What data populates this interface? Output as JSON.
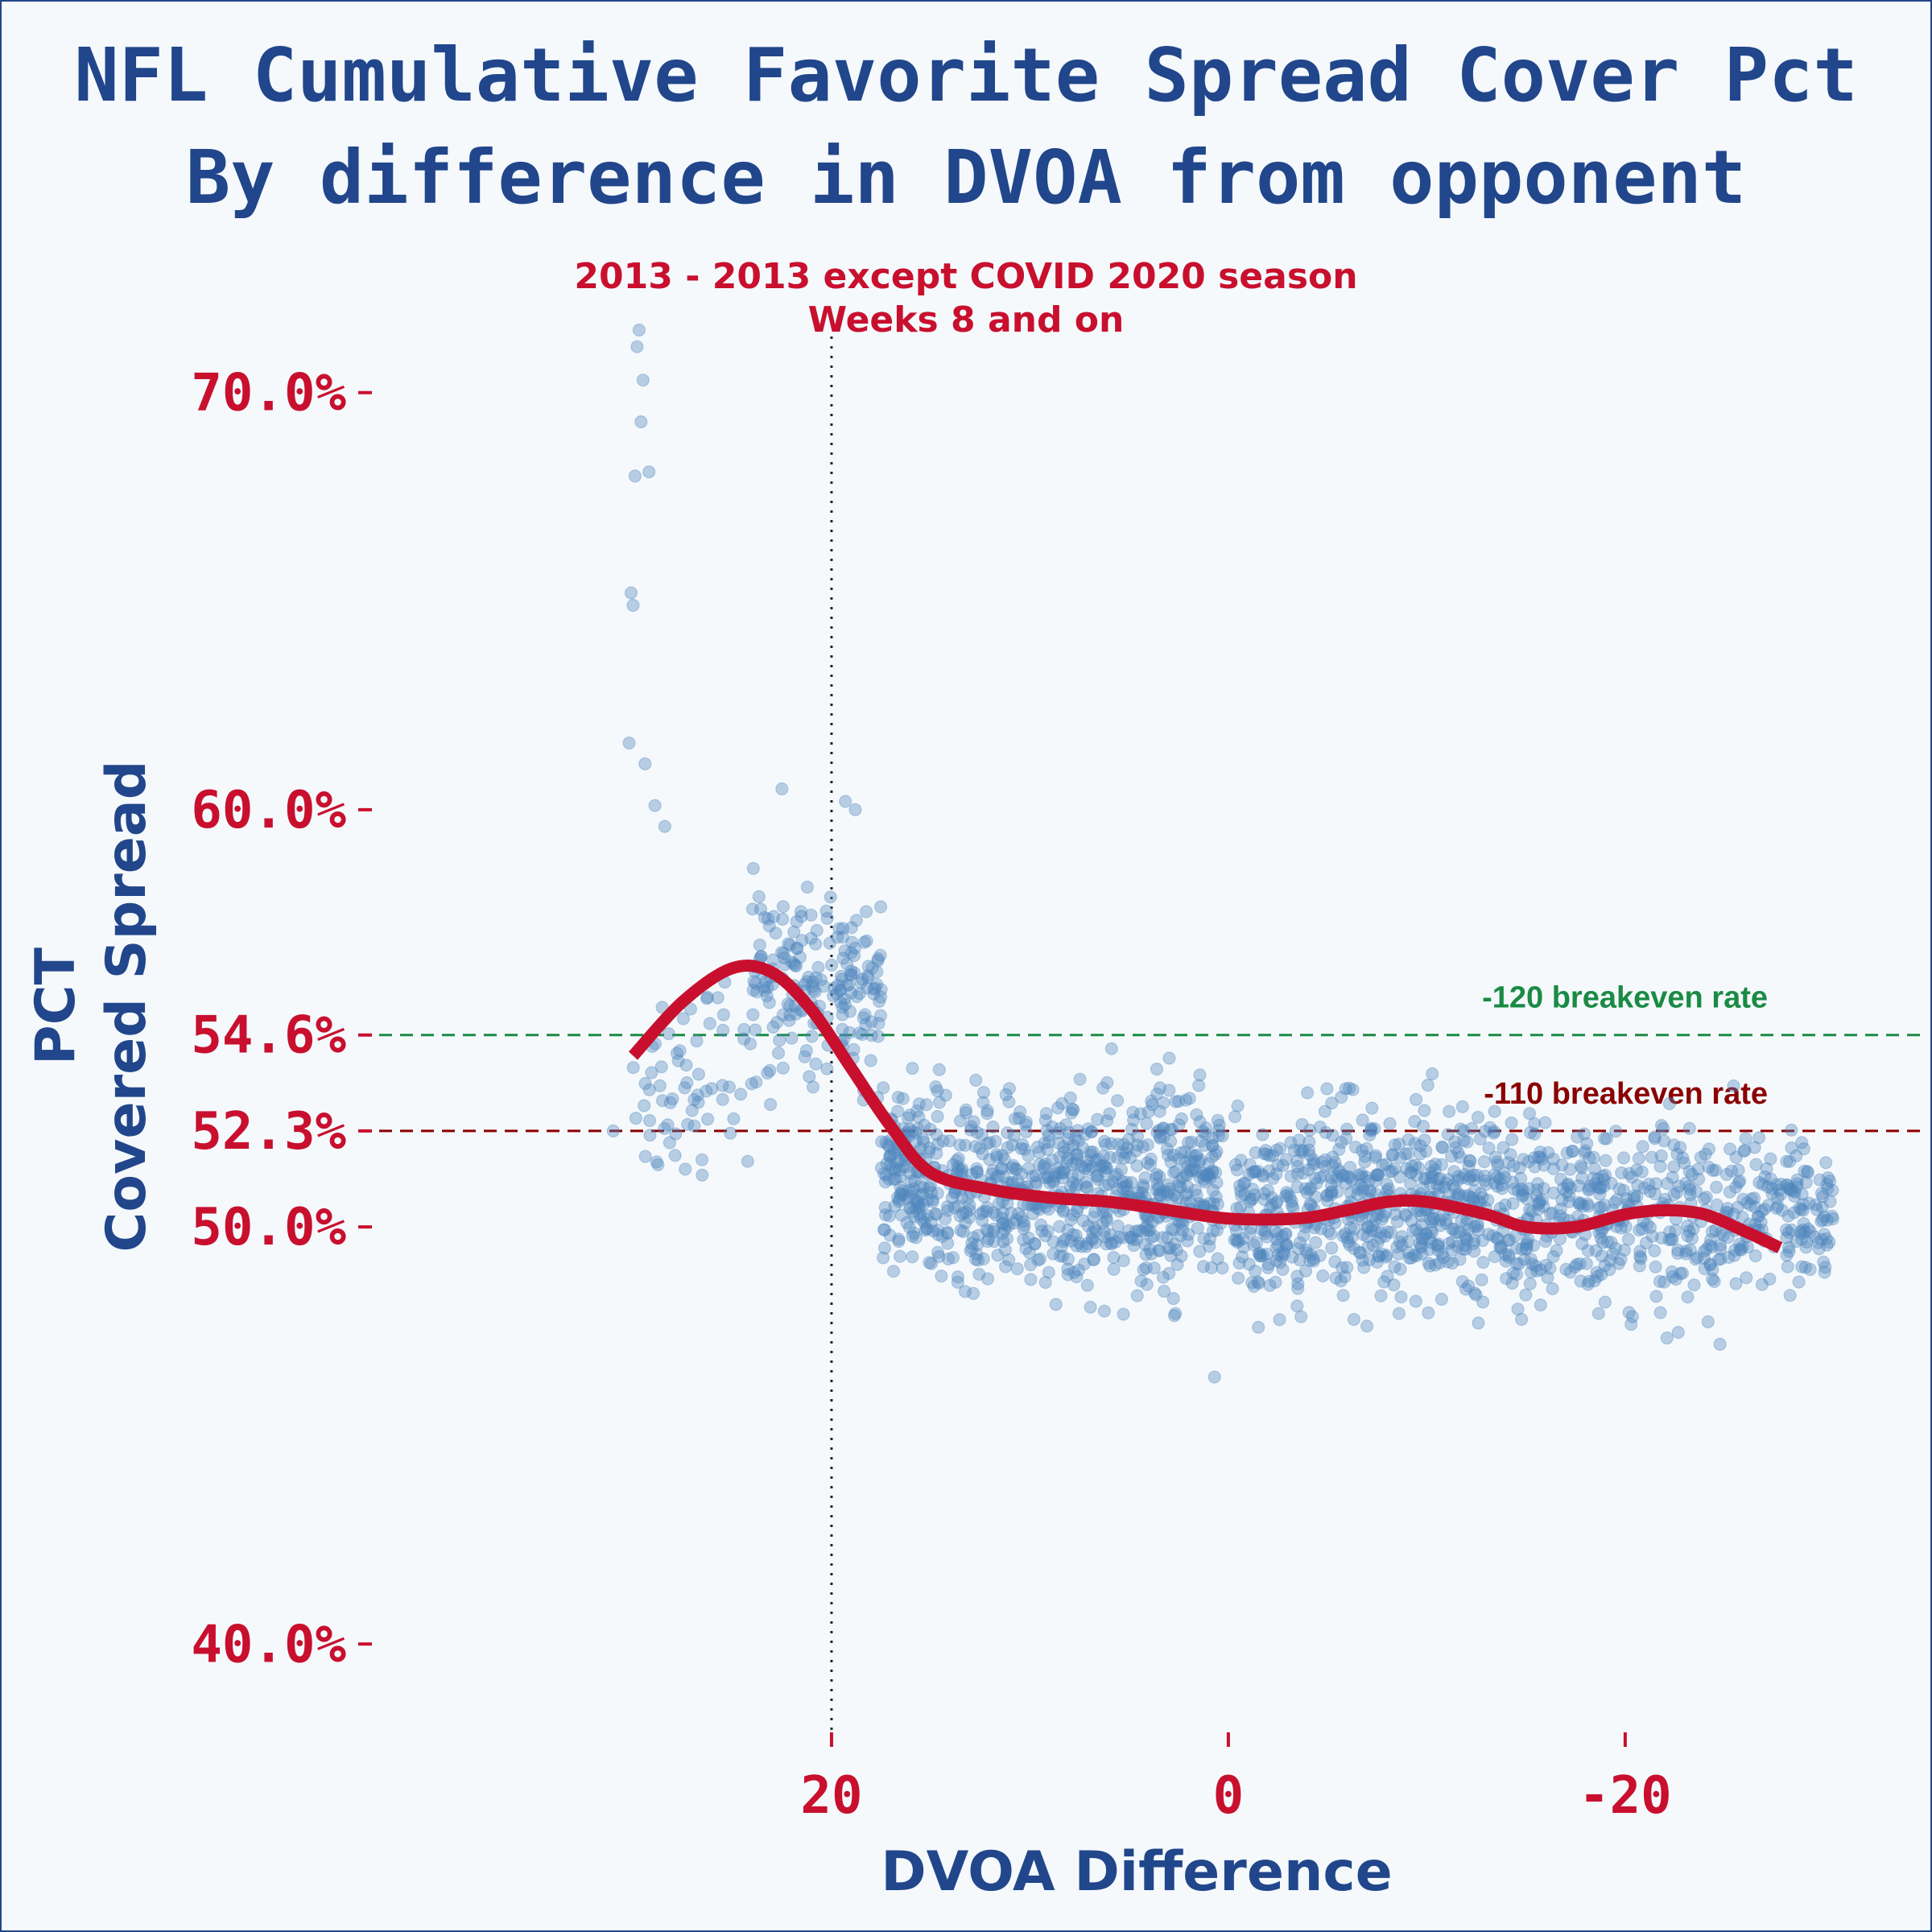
{
  "chart_data": {
    "type": "scatter",
    "title_line1": "NFL Cumulative Favorite Spread Cover Pct",
    "title_line2": "By difference in DVOA from opponent",
    "subtitle_line1": "2013 - 2013 except COVID 2020 season",
    "subtitle_line2": "Weeks 8 and on",
    "xlabel": "DVOA Difference",
    "ylabel_line1": "PCT",
    "ylabel_line2": "Covered Spread",
    "x_reversed": true,
    "xlim": [
      40,
      -31
    ],
    "ylim": [
      38.5,
      71.5
    ],
    "x_ticks": [
      {
        "value": 20,
        "label": "20"
      },
      {
        "value": 0,
        "label": "0"
      },
      {
        "value": -20,
        "label": "-20"
      }
    ],
    "y_ticks": [
      {
        "value": 70.0,
        "label": "70.0%"
      },
      {
        "value": 60.0,
        "label": "60.0%"
      },
      {
        "value": 54.6,
        "label": "54.6%"
      },
      {
        "value": 52.3,
        "label": "52.3%"
      },
      {
        "value": 50.0,
        "label": "50.0%"
      },
      {
        "value": 40.0,
        "label": "40.0%"
      }
    ],
    "reference_lines": [
      {
        "y": 54.6,
        "label": "-120 breakeven rate",
        "color": "#1a8a44",
        "style": "dashed"
      },
      {
        "y": 52.3,
        "label": "-110 breakeven rate",
        "color": "#8b0000",
        "style": "dashed"
      }
    ],
    "vertical_line": {
      "x": 20,
      "style": "dotted",
      "color": "#222222"
    },
    "scatter_color": "#4f86bd",
    "smooth_color": "#c8102e",
    "smooth_curve": {
      "x": [
        30.0,
        27.5,
        25.0,
        23.0,
        21.0,
        19.0,
        17.0,
        15.0,
        12.0,
        9.0,
        6.0,
        3.0,
        0.0,
        -3.5,
        -6.0,
        -8.0,
        -10.0,
        -13.0,
        -15.0,
        -17.5,
        -20.0,
        -22.0,
        -24.0,
        -26.0,
        -27.8
      ],
      "y": [
        54.1,
        55.4,
        56.2,
        56.1,
        55.2,
        53.8,
        52.4,
        51.3,
        50.9,
        50.7,
        50.6,
        50.4,
        50.2,
        50.2,
        50.4,
        50.6,
        50.6,
        50.3,
        50.0,
        50.0,
        50.3,
        50.4,
        50.3,
        49.9,
        49.5
      ]
    },
    "scatter_clusters": [
      {
        "x_range": [
          30.0,
          23.0
        ],
        "y_center": 53.4,
        "y_spread": 3.0,
        "count": 70
      },
      {
        "x_range": [
          24.0,
          21.5
        ],
        "y_center": 56.2,
        "y_spread": 2.8,
        "count": 70
      },
      {
        "x_range": [
          21.5,
          17.5
        ],
        "y_center": 55.8,
        "y_spread": 3.6,
        "count": 120
      },
      {
        "x_range": [
          17.5,
          15.0
        ],
        "y_center": 51.2,
        "y_spread": 3.0,
        "count": 140
      },
      {
        "x_range": [
          15.0,
          0.3
        ],
        "y_center": 50.9,
        "y_spread": 3.6,
        "count": 700
      },
      {
        "x_range": [
          -0.3,
          -16.0
        ],
        "y_center": 50.5,
        "y_spread": 3.5,
        "count": 700
      },
      {
        "x_range": [
          -16.0,
          -30.5
        ],
        "y_center": 50.3,
        "y_spread": 3.2,
        "count": 450
      }
    ],
    "scatter_outliers": [
      {
        "x": 29.7,
        "y": 71.5
      },
      {
        "x": 29.8,
        "y": 71.1
      },
      {
        "x": 29.5,
        "y": 70.3
      },
      {
        "x": 29.6,
        "y": 69.3
      },
      {
        "x": 29.2,
        "y": 68.1
      },
      {
        "x": 29.9,
        "y": 68.0
      },
      {
        "x": 30.1,
        "y": 65.2
      },
      {
        "x": 30.0,
        "y": 64.9
      },
      {
        "x": 30.2,
        "y": 61.6
      },
      {
        "x": 29.4,
        "y": 61.1
      },
      {
        "x": 28.9,
        "y": 60.1
      },
      {
        "x": 28.4,
        "y": 59.6
      },
      {
        "x": 18.8,
        "y": 60.0
      },
      {
        "x": 19.3,
        "y": 60.2
      },
      {
        "x": 22.5,
        "y": 60.5
      },
      {
        "x": 31.0,
        "y": 52.3
      },
      {
        "x": 0.7,
        "y": 46.4
      }
    ]
  }
}
